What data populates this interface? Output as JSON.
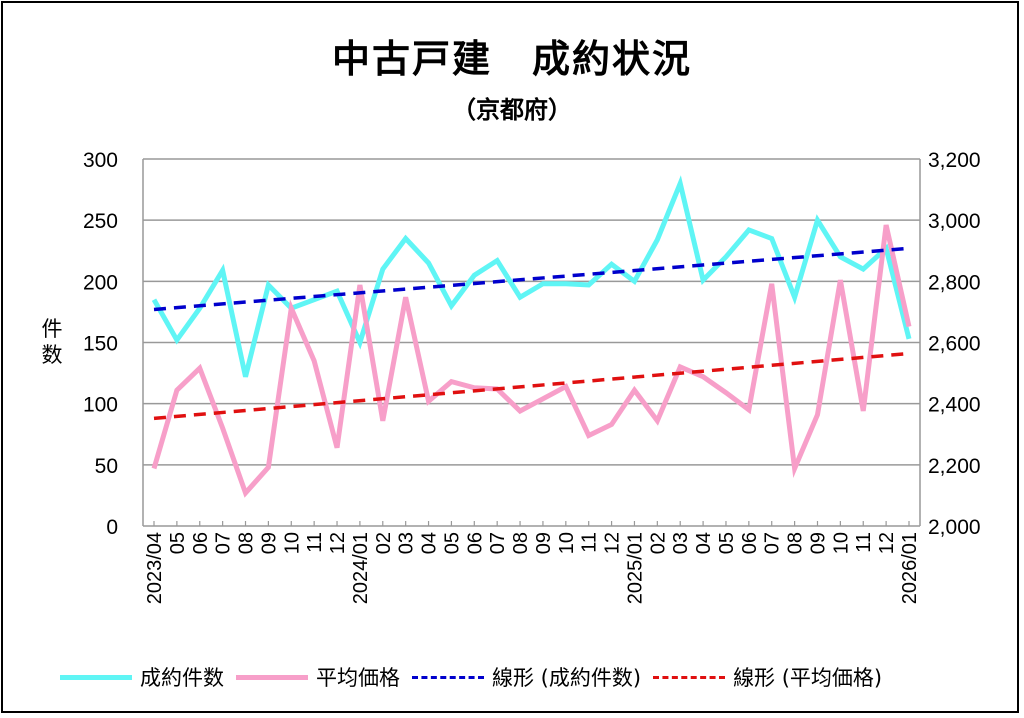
{
  "chart_data": {
    "type": "line",
    "title": "中古戸建　成約状況",
    "subtitle": "（京都府）",
    "ylabel": "件数",
    "ylim": [
      0,
      300
    ],
    "y_ticks": [
      "0",
      "50",
      "100",
      "150",
      "200",
      "250",
      "300"
    ],
    "y2lim": [
      2000,
      3200
    ],
    "y2_ticks": [
      "2,000",
      "2,200",
      "2,400",
      "2,600",
      "2,800",
      "3,000",
      "3,200"
    ],
    "grid": true,
    "legend_position": "bottom",
    "x": [
      "2023/04",
      "05",
      "06",
      "07",
      "08",
      "09",
      "10",
      "11",
      "12",
      "2024/01",
      "02",
      "03",
      "04",
      "05",
      "06",
      "07",
      "08",
      "09",
      "10",
      "11",
      "12",
      "2025/01",
      "02",
      "03",
      "04",
      "05",
      "06",
      "07",
      "08",
      "09",
      "10",
      "11",
      "12",
      "2026/01"
    ],
    "series": [
      {
        "name": "成約件数",
        "axis": "left",
        "color": "#5ff5f5",
        "style": "solid",
        "values": [
          185,
          152,
          178,
          209,
          122,
          197,
          178,
          185,
          192,
          150,
          210,
          235,
          215,
          180,
          205,
          217,
          187,
          198,
          198,
          197,
          214,
          200,
          234,
          280,
          201,
          220,
          242,
          235,
          187,
          250,
          220,
          210,
          227,
          153
        ]
      },
      {
        "name": "平均価格",
        "axis": "right",
        "color": "#f79fc9",
        "style": "solid",
        "values": [
          2188,
          2444,
          2516,
          2320,
          2108,
          2192,
          2712,
          2540,
          2256,
          2788,
          2344,
          2748,
          2408,
          2472,
          2452,
          2448,
          2376,
          2416,
          2456,
          2296,
          2332,
          2444,
          2344,
          2520,
          2488,
          2436,
          2380,
          2792,
          2188,
          2364,
          2804,
          2376,
          2984,
          2652
        ]
      },
      {
        "name": "線形 (成約件数)",
        "axis": "left",
        "color": "#0000cc",
        "style": "dashed",
        "trend": [
          177,
          227
        ]
      },
      {
        "name": "線形 (平均価格)",
        "axis": "right",
        "color": "#e01010",
        "style": "dashed",
        "trend": [
          2352,
          2564
        ]
      }
    ]
  }
}
